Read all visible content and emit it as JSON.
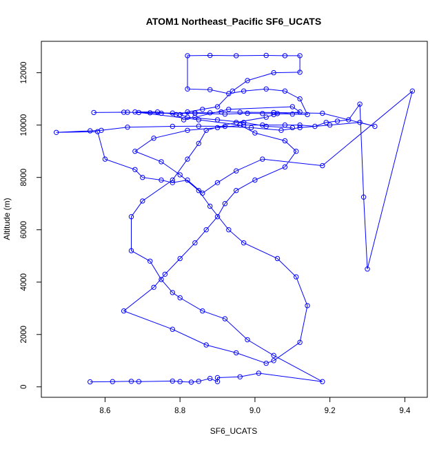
{
  "chart_data": {
    "type": "line",
    "title": "ATOM1 Northeast_Pacific SF6_UCATS",
    "xlabel": "SF6_UCATS",
    "ylabel": "Altitude (m)",
    "xlim": [
      8.43,
      9.46
    ],
    "ylim": [
      -400,
      13200
    ],
    "xticks": [
      "8.6",
      "8.8",
      "9.0",
      "9.2",
      "9.4"
    ],
    "xtick_values": [
      8.6,
      8.8,
      9.0,
      9.2,
      9.4
    ],
    "yticks": [
      "0",
      "2000",
      "4000",
      "6000",
      "8000",
      "10000",
      "12000"
    ],
    "ytick_values": [
      0,
      2000,
      4000,
      6000,
      8000,
      10000,
      12000
    ],
    "grid": false,
    "legend": "none",
    "series_color": "#0000ff",
    "marker": "open-circle",
    "series": [
      {
        "x": [
          8.56,
          8.62,
          8.67,
          8.69,
          8.78,
          8.8,
          8.83,
          8.85,
          8.88,
          8.9,
          8.9,
          8.96,
          9.01,
          9.18,
          9.05,
          8.98,
          8.92,
          8.86,
          8.8,
          8.78,
          8.75,
          8.72,
          8.67,
          8.67,
          8.7,
          8.78,
          8.82,
          8.85,
          8.87,
          8.95,
          9.03,
          9.05,
          9.12,
          9.1,
          8.93,
          8.84,
          8.81,
          8.79,
          8.74,
          8.68,
          8.85,
          8.96,
          9.0,
          9.08,
          9.11,
          9.08,
          9.0,
          8.95,
          8.92,
          8.9,
          8.87,
          8.84,
          8.8,
          8.76,
          8.73,
          8.65,
          8.78,
          8.87,
          8.95,
          9.03,
          9.05,
          9.12,
          9.14,
          9.11,
          9.06,
          8.97,
          8.93,
          8.88,
          8.85,
          8.8,
          8.75,
          8.68,
          8.73,
          8.82,
          8.9,
          8.97,
          9.02,
          9.08,
          9.12,
          9.16,
          9.19,
          9.22,
          9.25,
          9.28,
          9.29,
          9.3,
          9.42,
          9.18,
          9.02,
          8.95,
          8.9,
          8.86,
          8.82,
          8.78,
          8.75,
          8.7,
          8.68,
          8.6,
          8.58,
          8.47,
          8.56,
          8.59,
          8.66,
          8.78,
          8.85,
          8.92,
          8.99,
          9.07,
          9.12,
          9.2,
          9.28,
          9.32,
          9.18,
          9.05,
          8.96,
          8.91,
          8.88,
          8.84,
          8.78,
          8.72,
          8.69,
          8.65,
          8.57,
          8.66,
          8.75,
          8.84,
          8.92,
          8.98,
          9.02,
          9.06,
          9.1,
          9.14,
          9.12,
          9.08,
          9.03,
          8.97,
          8.93,
          8.88,
          8.82,
          8.82,
          8.88,
          8.95,
          9.03,
          9.08,
          9.12,
          9.12,
          9.05,
          8.98,
          8.94,
          8.9,
          8.86,
          8.82,
          8.8,
          8.82,
          8.9,
          8.97,
          9.03,
          9.1
        ],
        "y": [
          190,
          200,
          210,
          200,
          220,
          200,
          180,
          210,
          320,
          200,
          350,
          380,
          520,
          200,
          1200,
          1800,
          2600,
          2900,
          3400,
          3600,
          4100,
          4800,
          5200,
          6500,
          7100,
          7900,
          8700,
          9300,
          9800,
          10100,
          10300,
          10400,
          10500,
          10700,
          10600,
          10300,
          10200,
          10400,
          10500,
          10500,
          10200,
          10000,
          9700,
          9400,
          9000,
          8400,
          7900,
          7500,
          7000,
          6500,
          6000,
          5500,
          4900,
          4300,
          3800,
          2900,
          2200,
          1600,
          1300,
          900,
          1000,
          1700,
          3100,
          4200,
          4900,
          5500,
          6000,
          6900,
          7500,
          8100,
          8600,
          9000,
          9500,
          9800,
          9900,
          10000,
          10000,
          10000,
          10000,
          9950,
          10100,
          10150,
          10200,
          10800,
          7250,
          4500,
          11300,
          8450,
          8700,
          8250,
          7800,
          7400,
          7900,
          7800,
          7900,
          8000,
          8300,
          8700,
          9750,
          9720,
          9780,
          9800,
          9920,
          9950,
          9960,
          9950,
          9900,
          9800,
          9900,
          10000,
          10100,
          9950,
          10450,
          10480,
          10490,
          10500,
          10470,
          10470,
          10460,
          10470,
          10480,
          10490,
          10480,
          10490,
          10450,
          10450,
          10420,
          10450,
          10440,
          10440,
          10420,
          10400,
          11000,
          11300,
          11380,
          11300,
          11200,
          11350,
          11380,
          12650,
          12660,
          12650,
          12660,
          12650,
          12650,
          12020,
          12000,
          11700,
          11300,
          10700,
          10600,
          10500,
          10400,
          10300,
          10200,
          10100,
          9950,
          9900
        ]
      }
    ]
  }
}
